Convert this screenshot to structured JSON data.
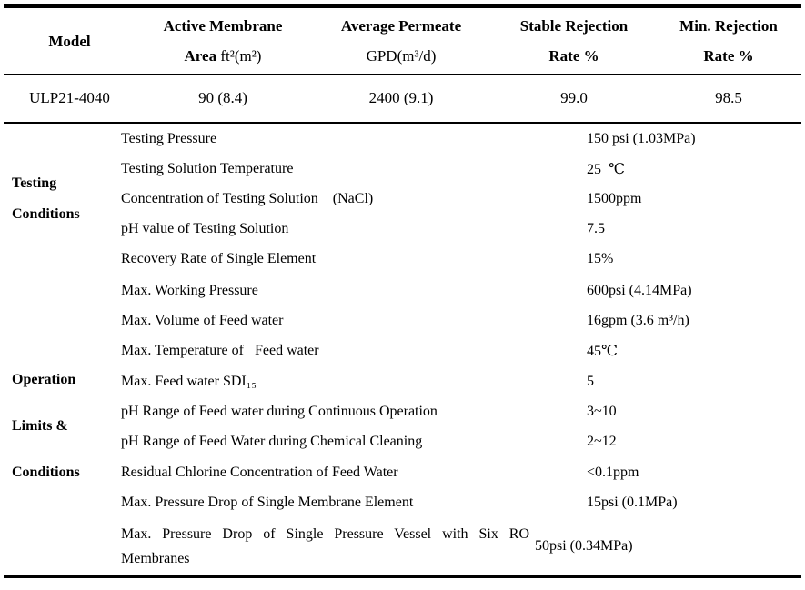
{
  "page": {
    "background": "#ffffff",
    "text_color": "#000000"
  },
  "spec_table": {
    "headers": [
      {
        "title": "Model"
      },
      {
        "line1": "Active Membrane",
        "line2_bold": "Area",
        "line2_unit": " ft²(m²)"
      },
      {
        "line1": "Average Permeate",
        "line2_unit": "GPD(m³/d)"
      },
      {
        "line1": "Stable Rejection",
        "line2_bold": "Rate %"
      },
      {
        "line1": "Min. Rejection",
        "line2_bold": "Rate %"
      }
    ],
    "data_row": {
      "model": "ULP21-4040",
      "active_membrane_area": "90 (8.4)",
      "average_permeate": "2400 (9.1)",
      "stable_rejection_rate": "99.0",
      "min_rejection_rate": "98.5"
    }
  },
  "sections": [
    {
      "title_lines": [
        "Testing",
        "Conditions"
      ],
      "rows": [
        {
          "label": "Testing Pressure",
          "value": "150 psi (1.03MPa)"
        },
        {
          "label": "Testing Solution Temperature",
          "value": "25  ℃"
        },
        {
          "label": "Concentration of Testing Solution    (NaCl)",
          "value": "1500ppm"
        },
        {
          "label": "pH value of Testing Solution",
          "value": "7.5"
        },
        {
          "label": "Recovery Rate of Single Element",
          "value": "15%"
        }
      ]
    },
    {
      "title_lines": [
        "Operation",
        "Limits &",
        "Conditions"
      ],
      "rows": [
        {
          "label": "Max. Working Pressure",
          "value": "600psi (4.14MPa)"
        },
        {
          "label": "Max. Volume of Feed water",
          "value": "16gpm (3.6 m³/h)"
        },
        {
          "label": "Max. Temperature of   Feed water",
          "value": "45℃"
        },
        {
          "label": "Max. Feed water SDI₁₅",
          "value": "5"
        },
        {
          "label": "pH Range of Feed water during Continuous Operation",
          "value": "3~10"
        },
        {
          "label": "pH Range of Feed Water during Chemical Cleaning",
          "value": "2~12"
        },
        {
          "label": "Residual Chlorine Concentration of Feed Water",
          "value": "<0.1ppm"
        },
        {
          "label": "Max. Pressure Drop of Single Membrane Element",
          "value": "15psi (0.1MPa)"
        },
        {
          "label": "Max. Pressure Drop of Single Pressure Vessel with Six RO Membranes",
          "value": "50psi (0.34MPa)"
        }
      ]
    }
  ]
}
